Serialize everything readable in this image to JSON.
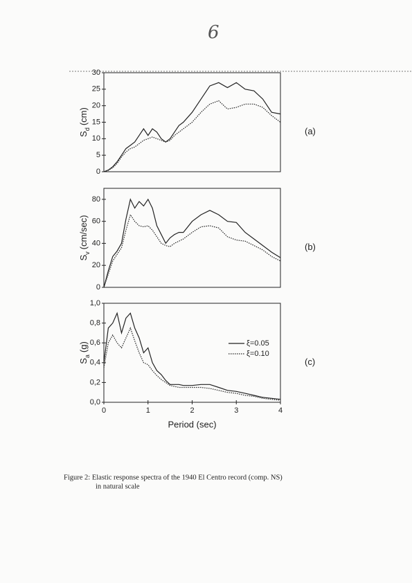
{
  "handwritten_mark": "6",
  "chart_data": [
    {
      "type": "line",
      "panel_label": "(a)",
      "ylabel": {
        "symbol": "S",
        "subscript": "d",
        "unit": "(cm)"
      },
      "xlim": [
        0,
        4
      ],
      "ylim": [
        0,
        30
      ],
      "yticks": [
        0,
        5,
        10,
        15,
        20,
        25,
        30
      ],
      "x": [
        0,
        0.1,
        0.2,
        0.3,
        0.4,
        0.5,
        0.6,
        0.7,
        0.8,
        0.9,
        1.0,
        1.1,
        1.2,
        1.3,
        1.4,
        1.5,
        1.6,
        1.7,
        1.8,
        2.0,
        2.2,
        2.4,
        2.6,
        2.8,
        3.0,
        3.2,
        3.4,
        3.6,
        3.8,
        4.0
      ],
      "series": [
        {
          "color": "#222",
          "dash": "solid",
          "values": [
            0,
            0.5,
            1.5,
            3,
            5,
            7,
            8,
            9,
            11,
            13,
            11,
            13,
            12,
            10,
            9,
            10,
            12,
            14,
            15,
            18,
            22,
            26,
            27,
            25.5,
            27,
            25,
            24.5,
            22,
            18,
            17.5
          ]
        },
        {
          "color": "#222",
          "dash": "dotted",
          "values": [
            0,
            0.4,
            1.2,
            2.5,
            4.5,
            6,
            7,
            7.5,
            8.5,
            9.5,
            10,
            10.5,
            10,
            9.5,
            9,
            9.5,
            11,
            12,
            13,
            15,
            18,
            20.5,
            21.5,
            19,
            19.5,
            20.5,
            20.5,
            19.5,
            17,
            15
          ]
        }
      ]
    },
    {
      "type": "line",
      "panel_label": "(b)",
      "ylabel": {
        "symbol": "S",
        "subscript": "v",
        "unit": "(cm/sec)"
      },
      "xlim": [
        0,
        4
      ],
      "ylim": [
        0,
        90
      ],
      "yticks": [
        0,
        20,
        40,
        60,
        80
      ],
      "x": [
        0,
        0.1,
        0.2,
        0.3,
        0.4,
        0.5,
        0.6,
        0.7,
        0.8,
        0.9,
        1.0,
        1.1,
        1.2,
        1.3,
        1.4,
        1.5,
        1.6,
        1.7,
        1.8,
        2.0,
        2.2,
        2.4,
        2.6,
        2.8,
        3.0,
        3.2,
        3.4,
        3.6,
        3.8,
        4.0
      ],
      "series": [
        {
          "color": "#222",
          "dash": "solid",
          "values": [
            0,
            15,
            28,
            33,
            40,
            62,
            80,
            72,
            78,
            74,
            80,
            72,
            56,
            48,
            40,
            45,
            48,
            50,
            50,
            60,
            66,
            70,
            66,
            60,
            59,
            50,
            44,
            38,
            32,
            27
          ]
        },
        {
          "color": "#222",
          "dash": "dotted",
          "values": [
            0,
            12,
            24,
            30,
            36,
            52,
            66,
            60,
            56,
            55,
            56,
            52,
            46,
            40,
            38,
            37,
            40,
            42,
            44,
            50,
            55,
            56,
            54,
            46,
            43,
            42,
            38,
            34,
            28,
            24
          ]
        }
      ]
    },
    {
      "type": "line",
      "panel_label": "(c)",
      "ylabel": {
        "symbol": "S",
        "subscript": "a",
        "unit": "(g)"
      },
      "xlabel": "Period (sec)",
      "legend": "right",
      "xlim": [
        0,
        4
      ],
      "xticks": [
        0,
        1,
        2,
        3,
        4
      ],
      "ylim": [
        0,
        1
      ],
      "yticks": [
        {
          "value": 0,
          "label": "0,0"
        },
        {
          "value": 0.2,
          "label": "0,2"
        },
        {
          "value": 0.4,
          "label": "0,4"
        },
        {
          "value": 0.6,
          "label": "0,6"
        },
        {
          "value": 0.8,
          "label": "0,8"
        },
        {
          "value": 1,
          "label": "1,0"
        }
      ],
      "x": [
        0,
        0.1,
        0.2,
        0.3,
        0.4,
        0.5,
        0.6,
        0.7,
        0.8,
        0.9,
        1.0,
        1.1,
        1.2,
        1.3,
        1.4,
        1.5,
        1.6,
        1.7,
        1.8,
        2.0,
        2.2,
        2.4,
        2.6,
        2.8,
        3.0,
        3.2,
        3.4,
        3.6,
        3.8,
        4.0
      ],
      "series": [
        {
          "name": "ξ=0.05",
          "color": "#222",
          "dash": "solid",
          "values": [
            0.4,
            0.75,
            0.8,
            0.9,
            0.7,
            0.85,
            0.9,
            0.75,
            0.65,
            0.5,
            0.55,
            0.4,
            0.32,
            0.28,
            0.22,
            0.18,
            0.18,
            0.18,
            0.17,
            0.17,
            0.18,
            0.18,
            0.15,
            0.12,
            0.11,
            0.09,
            0.07,
            0.05,
            0.04,
            0.03
          ]
        },
        {
          "name": "ξ=0.10",
          "color": "#222",
          "dash": "dotted",
          "values": [
            0.35,
            0.6,
            0.68,
            0.6,
            0.55,
            0.65,
            0.75,
            0.62,
            0.5,
            0.4,
            0.38,
            0.32,
            0.27,
            0.23,
            0.2,
            0.17,
            0.16,
            0.15,
            0.15,
            0.15,
            0.15,
            0.14,
            0.12,
            0.1,
            0.09,
            0.07,
            0.06,
            0.04,
            0.03,
            0.02
          ]
        }
      ]
    }
  ],
  "caption": {
    "line1": "Figure 2:  Elastic response spectra of the 1940 El Centro record  (comp. NS)",
    "line2": "in natural scale"
  }
}
